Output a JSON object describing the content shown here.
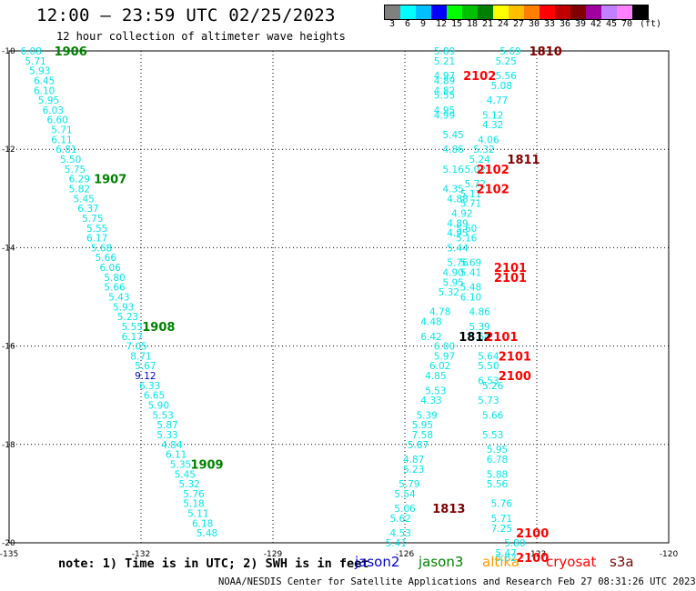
{
  "header": {
    "title": "12:00 – 23:59 UTC 02/25/2023",
    "subtitle": "12 hour collection of altimeter wave heights",
    "unit": "(ft)"
  },
  "colorbar": {
    "colors": [
      "#808080",
      "#00ffff",
      "#00bfff",
      "#0000ff",
      "#00ff00",
      "#00c000",
      "#008000",
      "#ffff00",
      "#ffbf00",
      "#ff8000",
      "#ff0000",
      "#c00000",
      "#800000",
      "#a000a0",
      "#c080ff",
      "#ff80ff",
      "#000000"
    ],
    "labels": [
      "3",
      "6",
      "9",
      "12",
      "15",
      "18",
      "21",
      "24",
      "27",
      "30",
      "33",
      "36",
      "39",
      "42",
      "45",
      "70"
    ]
  },
  "footer": {
    "note": "note:  1) Time is in UTC; 2) SWH is in feet",
    "credit": "NOAA/NESDIS Center for Satellite Applications and Research   Feb 27 08:31:26 UTC 2023",
    "legend": [
      {
        "name": "jason2",
        "color": "#0000cc"
      },
      {
        "name": "jason3",
        "color": "#008000"
      },
      {
        "name": "altika",
        "color": "#ff9900"
      },
      {
        "name": "cryosat",
        "color": "#ff0000"
      },
      {
        "name": "s3a",
        "color": "#800000"
      }
    ]
  },
  "chart_data": {
    "type": "scatter",
    "title": "12:00 – 23:59 UTC 02/25/2023",
    "xlim": [
      -135,
      -120
    ],
    "ylim": [
      -20,
      -10
    ],
    "xticks": [
      -135,
      -132,
      -129,
      -126,
      -123,
      -120
    ],
    "yticks": [
      -10,
      -12,
      -14,
      -16,
      -18,
      -20
    ],
    "grid": true,
    "series": [
      {
        "name": "jason3",
        "color": "#00e8e8",
        "points": [
          {
            "x": -134.5,
            "y": -10.0,
            "v": "6.08"
          },
          {
            "x": -134.4,
            "y": -10.2,
            "v": "5.71"
          },
          {
            "x": -134.3,
            "y": -10.4,
            "v": "5.93"
          },
          {
            "x": -134.2,
            "y": -10.6,
            "v": "6.45"
          },
          {
            "x": -134.2,
            "y": -10.8,
            "v": "6.10"
          },
          {
            "x": -134.1,
            "y": -11.0,
            "v": "5.95"
          },
          {
            "x": -134.0,
            "y": -11.2,
            "v": "6.03"
          },
          {
            "x": -133.9,
            "y": -11.4,
            "v": "6.60"
          },
          {
            "x": -133.8,
            "y": -11.6,
            "v": "5.71"
          },
          {
            "x": -133.8,
            "y": -11.8,
            "v": "6.11"
          },
          {
            "x": -133.7,
            "y": -12.0,
            "v": "6.81"
          },
          {
            "x": -133.6,
            "y": -12.2,
            "v": "5.50"
          },
          {
            "x": -133.5,
            "y": -12.4,
            "v": "5.75"
          },
          {
            "x": -133.4,
            "y": -12.6,
            "v": "6.29"
          },
          {
            "x": -133.4,
            "y": -12.8,
            "v": "5.82"
          },
          {
            "x": -133.3,
            "y": -13.0,
            "v": "5.45"
          },
          {
            "x": -133.2,
            "y": -13.2,
            "v": "6.37"
          },
          {
            "x": -133.1,
            "y": -13.4,
            "v": "5.75"
          },
          {
            "x": -133.0,
            "y": -13.6,
            "v": "5.55"
          },
          {
            "x": -133.0,
            "y": -13.8,
            "v": "6.17"
          },
          {
            "x": -132.9,
            "y": -14.0,
            "v": "5.68"
          },
          {
            "x": -132.8,
            "y": -14.2,
            "v": "5.66"
          },
          {
            "x": -132.7,
            "y": -14.4,
            "v": "6.06"
          },
          {
            "x": -132.6,
            "y": -14.6,
            "v": "5.80"
          },
          {
            "x": -132.6,
            "y": -14.8,
            "v": "5.66"
          },
          {
            "x": -132.5,
            "y": -15.0,
            "v": "5.43"
          },
          {
            "x": -132.4,
            "y": -15.2,
            "v": "5.93"
          },
          {
            "x": -132.3,
            "y": -15.4,
            "v": "5.23"
          },
          {
            "x": -132.2,
            "y": -15.6,
            "v": "5.55"
          },
          {
            "x": -132.2,
            "y": -15.8,
            "v": "6.17"
          },
          {
            "x": -132.1,
            "y": -16.0,
            "v": "7.05"
          },
          {
            "x": -132.0,
            "y": -16.2,
            "v": "8.71"
          },
          {
            "x": -131.9,
            "y": -16.4,
            "v": "5.67"
          },
          {
            "x": -131.8,
            "y": -16.8,
            "v": "6.33"
          },
          {
            "x": -131.7,
            "y": -17.0,
            "v": "6.65"
          },
          {
            "x": -131.6,
            "y": -17.2,
            "v": "5.90"
          },
          {
            "x": -131.5,
            "y": -17.4,
            "v": "5.53"
          },
          {
            "x": -131.4,
            "y": -17.6,
            "v": "5.87"
          },
          {
            "x": -131.4,
            "y": -17.8,
            "v": "5.33"
          },
          {
            "x": -131.3,
            "y": -18.0,
            "v": "4.84"
          },
          {
            "x": -131.2,
            "y": -18.2,
            "v": "6.11"
          },
          {
            "x": -131.1,
            "y": -18.4,
            "v": "5.35"
          },
          {
            "x": -131.0,
            "y": -18.6,
            "v": "5.45"
          },
          {
            "x": -130.9,
            "y": -18.8,
            "v": "5.32"
          },
          {
            "x": -130.8,
            "y": -19.0,
            "v": "5.76"
          },
          {
            "x": -130.8,
            "y": -19.2,
            "v": "5.18"
          },
          {
            "x": -130.7,
            "y": -19.4,
            "v": "5.11"
          },
          {
            "x": -130.6,
            "y": -19.6,
            "v": "6.18"
          },
          {
            "x": -130.5,
            "y": -19.8,
            "v": "5.48"
          },
          {
            "x": -125.1,
            "y": -10.0,
            "v": "5.89"
          },
          {
            "x": -125.1,
            "y": -10.2,
            "v": "5.21"
          },
          {
            "x": -125.1,
            "y": -10.5,
            "v": "4.97"
          },
          {
            "x": -125.1,
            "y": -10.6,
            "v": "4.89"
          },
          {
            "x": -125.1,
            "y": -10.8,
            "v": "4.82"
          },
          {
            "x": -125.1,
            "y": -10.9,
            "v": "5.55"
          },
          {
            "x": -125.1,
            "y": -11.2,
            "v": "4.95"
          },
          {
            "x": -125.1,
            "y": -11.3,
            "v": "4.99"
          },
          {
            "x": -124.9,
            "y": -11.7,
            "v": "5.45"
          },
          {
            "x": -124.9,
            "y": -12.0,
            "v": "4.86"
          },
          {
            "x": -124.9,
            "y": -12.4,
            "v": "5.16"
          },
          {
            "x": -124.9,
            "y": -12.8,
            "v": "4.35"
          },
          {
            "x": -124.8,
            "y": -13.0,
            "v": "4.88"
          },
          {
            "x": -124.7,
            "y": -13.3,
            "v": "4.92"
          },
          {
            "x": -124.8,
            "y": -13.5,
            "v": "4.89"
          },
          {
            "x": -124.8,
            "y": -13.7,
            "v": "4.95"
          },
          {
            "x": -124.8,
            "y": -14.0,
            "v": "5.44"
          },
          {
            "x": -124.8,
            "y": -14.3,
            "v": "5.76"
          },
          {
            "x": -124.9,
            "y": -14.5,
            "v": "4.90"
          },
          {
            "x": -124.9,
            "y": -14.7,
            "v": "5.95"
          },
          {
            "x": -125.0,
            "y": -14.9,
            "v": "5.32"
          },
          {
            "x": -125.2,
            "y": -15.3,
            "v": "4.78"
          },
          {
            "x": -125.4,
            "y": -15.5,
            "v": "4.48"
          },
          {
            "x": -125.4,
            "y": -15.8,
            "v": "6.42"
          },
          {
            "x": -125.1,
            "y": -16.0,
            "v": "6.00"
          },
          {
            "x": -125.1,
            "y": -16.2,
            "v": "5.97"
          },
          {
            "x": -125.2,
            "y": -16.4,
            "v": "6.02"
          },
          {
            "x": -125.3,
            "y": -16.6,
            "v": "4.85"
          },
          {
            "x": -125.3,
            "y": -16.9,
            "v": "5.53"
          },
          {
            "x": -125.4,
            "y": -17.1,
            "v": "4.33"
          },
          {
            "x": -125.5,
            "y": -17.4,
            "v": "5.39"
          },
          {
            "x": -125.6,
            "y": -17.6,
            "v": "5.95"
          },
          {
            "x": -125.6,
            "y": -17.8,
            "v": "7.58"
          },
          {
            "x": -125.7,
            "y": -18.0,
            "v": "5.87"
          },
          {
            "x": -125.8,
            "y": -18.3,
            "v": "4.87"
          },
          {
            "x": -125.8,
            "y": -18.5,
            "v": "5.23"
          },
          {
            "x": -125.9,
            "y": -18.8,
            "v": "5.79"
          },
          {
            "x": -126.0,
            "y": -19.0,
            "v": "5.54"
          },
          {
            "x": -126.0,
            "y": -19.3,
            "v": "5.06"
          },
          {
            "x": -126.1,
            "y": -19.5,
            "v": "5.62"
          },
          {
            "x": -126.1,
            "y": -19.8,
            "v": "4.53"
          },
          {
            "x": -126.2,
            "y": -20.0,
            "v": "5.41"
          },
          {
            "x": -123.6,
            "y": -10.0,
            "v": "5.69"
          },
          {
            "x": -123.7,
            "y": -10.2,
            "v": "5.25"
          },
          {
            "x": -123.7,
            "y": -10.5,
            "v": "5.56"
          },
          {
            "x": -123.8,
            "y": -10.7,
            "v": "5.08"
          },
          {
            "x": -123.9,
            "y": -11.0,
            "v": "4.77"
          },
          {
            "x": -124.0,
            "y": -11.3,
            "v": "5.12"
          },
          {
            "x": -124.0,
            "y": -11.5,
            "v": "4.32"
          },
          {
            "x": -124.1,
            "y": -11.8,
            "v": "4.06"
          },
          {
            "x": -124.2,
            "y": -12.0,
            "v": "5.32"
          },
          {
            "x": -124.3,
            "y": -12.2,
            "v": "5.24"
          },
          {
            "x": -124.4,
            "y": -12.4,
            "v": "5.02"
          },
          {
            "x": -124.4,
            "y": -12.7,
            "v": "5.72"
          },
          {
            "x": -124.5,
            "y": -12.9,
            "v": "5.11"
          },
          {
            "x": -124.5,
            "y": -13.1,
            "v": "5.71"
          },
          {
            "x": -124.6,
            "y": -13.6,
            "v": "5.60"
          },
          {
            "x": -124.6,
            "y": -13.8,
            "v": "5.16"
          },
          {
            "x": -124.5,
            "y": -14.3,
            "v": "5.69"
          },
          {
            "x": -124.5,
            "y": -14.5,
            "v": "5.41"
          },
          {
            "x": -124.5,
            "y": -14.8,
            "v": "5.48"
          },
          {
            "x": -124.5,
            "y": -15.0,
            "v": "6.10"
          },
          {
            "x": -124.3,
            "y": -15.3,
            "v": "4.86"
          },
          {
            "x": -124.3,
            "y": -15.6,
            "v": "5.39"
          },
          {
            "x": -124.3,
            "y": -15.8,
            "v": "5.64"
          },
          {
            "x": -124.1,
            "y": -16.2,
            "v": "5.64"
          },
          {
            "x": -124.1,
            "y": -16.4,
            "v": "5.50"
          },
          {
            "x": -124.1,
            "y": -16.7,
            "v": "6.53"
          },
          {
            "x": -124.0,
            "y": -16.8,
            "v": "5.26"
          },
          {
            "x": -124.1,
            "y": -17.1,
            "v": "5.73"
          },
          {
            "x": -124.0,
            "y": -17.4,
            "v": "5.66"
          },
          {
            "x": -124.0,
            "y": -17.8,
            "v": "5.53"
          },
          {
            "x": -123.9,
            "y": -18.1,
            "v": "5.95"
          },
          {
            "x": -123.9,
            "y": -18.3,
            "v": "6.78"
          },
          {
            "x": -123.9,
            "y": -18.6,
            "v": "5.88"
          },
          {
            "x": -123.9,
            "y": -18.8,
            "v": "5.56"
          },
          {
            "x": -123.8,
            "y": -19.2,
            "v": "5.76"
          },
          {
            "x": -123.8,
            "y": -19.5,
            "v": "5.71"
          },
          {
            "x": -123.8,
            "y": -19.7,
            "v": "7.25"
          },
          {
            "x": -123.7,
            "y": -20.2,
            "v": "5.47"
          },
          {
            "x": -123.7,
            "y": -20.3,
            "v": "5.82"
          },
          {
            "x": -123.5,
            "y": -20.0,
            "v": "5.80"
          }
        ]
      },
      {
        "name": "jason2",
        "color": "#0000cc",
        "points": [
          {
            "x": -131.9,
            "y": -16.6,
            "v": "9.12"
          }
        ]
      }
    ],
    "annotations": [
      {
        "text": "1906",
        "x": -133.6,
        "y": -10.0,
        "color": "#008000"
      },
      {
        "text": "1907",
        "x": -132.7,
        "y": -12.6,
        "color": "#008000"
      },
      {
        "text": "1908",
        "x": -131.6,
        "y": -15.6,
        "color": "#008000"
      },
      {
        "text": "1909",
        "x": -130.5,
        "y": -18.4,
        "color": "#008000"
      },
      {
        "text": "1810",
        "x": -122.8,
        "y": -10.0,
        "color": "#800000"
      },
      {
        "text": "1811",
        "x": -123.3,
        "y": -12.2,
        "color": "#800000"
      },
      {
        "text": "1812",
        "x": -124.4,
        "y": -15.8,
        "color": "#000000"
      },
      {
        "text": "1813",
        "x": -125.0,
        "y": -19.3,
        "color": "#800000"
      },
      {
        "text": "2102",
        "x": -124.3,
        "y": -10.5,
        "color": "#ff0000"
      },
      {
        "text": "2102",
        "x": -124.0,
        "y": -12.4,
        "color": "#ff0000"
      },
      {
        "text": "2102",
        "x": -124.0,
        "y": -12.8,
        "color": "#ff0000"
      },
      {
        "text": "2101",
        "x": -123.6,
        "y": -14.4,
        "color": "#ff0000"
      },
      {
        "text": "2101",
        "x": -123.6,
        "y": -14.6,
        "color": "#ff0000"
      },
      {
        "text": "2101",
        "x": -123.8,
        "y": -15.8,
        "color": "#ff0000"
      },
      {
        "text": "2101",
        "x": -123.5,
        "y": -16.2,
        "color": "#ff0000"
      },
      {
        "text": "2100",
        "x": -123.5,
        "y": -16.6,
        "color": "#ff0000"
      },
      {
        "text": "2100",
        "x": -123.1,
        "y": -19.8,
        "color": "#ff0000"
      },
      {
        "text": "2100",
        "x": -123.1,
        "y": -20.3,
        "color": "#ff0000"
      }
    ]
  }
}
